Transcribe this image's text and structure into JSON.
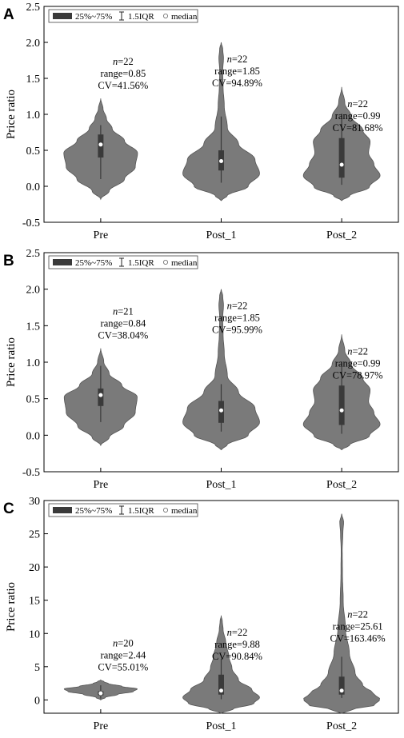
{
  "figure": {
    "legend": {
      "box_label": "25%~75%",
      "whisker_label": "1.5IQR",
      "median_label": "median"
    },
    "colors": {
      "violin": "#7a7a7a",
      "box": "#3a3a3a",
      "median": "#ffffff",
      "axis": "#000000"
    }
  },
  "chart_data": [
    {
      "panel": "A",
      "type": "violin",
      "ylabel": "Price ratio",
      "categories": [
        "Pre",
        "Post_1",
        "Post_2"
      ],
      "ylim": [
        -0.5,
        2.5
      ],
      "yticks": [
        "-0.5",
        "0.0",
        "0.5",
        "1.0",
        "1.5",
        "2.0",
        "2.5"
      ],
      "grid": false,
      "legend_position": "top-left",
      "groups": [
        {
          "category": "Pre",
          "n": "22",
          "range": "range=0.85",
          "cv": "CV=41.56%",
          "q1": 0.4,
          "median": 0.58,
          "q3": 0.72,
          "whisker_low": 0.1,
          "whisker_high": 0.85,
          "kde_min": -0.18,
          "kde_max": 1.22
        },
        {
          "category": "Post_1",
          "n": "22",
          "range": "range=1.85",
          "cv": "CV=94.89%",
          "q1": 0.22,
          "median": 0.35,
          "q3": 0.5,
          "whisker_low": 0.05,
          "whisker_high": 0.97,
          "kde_min": -0.2,
          "kde_max": 2.0
        },
        {
          "category": "Post_2",
          "n": "22",
          "range": "range=0.99",
          "cv": "CV=81.68%",
          "q1": 0.12,
          "median": 0.3,
          "q3": 0.67,
          "whisker_low": 0.02,
          "whisker_high": 1.01,
          "kde_min": -0.2,
          "kde_max": 1.38
        }
      ]
    },
    {
      "panel": "B",
      "type": "violin",
      "ylabel": "Price ratio",
      "categories": [
        "Pre",
        "Post_1",
        "Post_2"
      ],
      "ylim": [
        -0.5,
        2.5
      ],
      "yticks": [
        "-0.5",
        "0.0",
        "0.5",
        "1.0",
        "1.5",
        "2.0",
        "2.5"
      ],
      "grid": false,
      "legend_position": "top-left",
      "groups": [
        {
          "category": "Pre",
          "n": "21",
          "range": "range=0.84",
          "cv": "CV=38.04%",
          "q1": 0.4,
          "median": 0.55,
          "q3": 0.64,
          "whisker_low": 0.18,
          "whisker_high": 0.95,
          "kde_min": -0.14,
          "kde_max": 1.19
        },
        {
          "category": "Post_1",
          "n": "22",
          "range": "range=1.85",
          "cv": "CV=95.99%",
          "q1": 0.17,
          "median": 0.34,
          "q3": 0.47,
          "whisker_low": 0.05,
          "whisker_high": 0.7,
          "kde_min": -0.2,
          "kde_max": 2.0
        },
        {
          "category": "Post_2",
          "n": "22",
          "range": "range=0.99",
          "cv": "CV=78.97%",
          "q1": 0.14,
          "median": 0.34,
          "q3": 0.68,
          "whisker_low": 0.02,
          "whisker_high": 1.01,
          "kde_min": -0.2,
          "kde_max": 1.38
        }
      ]
    },
    {
      "panel": "C",
      "type": "violin",
      "ylabel": "Price ratio",
      "categories": [
        "Pre",
        "Post_1",
        "Post_2"
      ],
      "ylim": [
        -2,
        30
      ],
      "yticks": [
        "0",
        "5",
        "10",
        "15",
        "20",
        "25",
        "30"
      ],
      "grid": false,
      "legend_position": "top-left",
      "groups": [
        {
          "category": "Pre",
          "n": "20",
          "range": "range=2.44",
          "cv": "CV=55.01%",
          "q1": 0.7,
          "median": 1.0,
          "q3": 1.3,
          "whisker_low": 0.2,
          "whisker_high": 2.2,
          "kde_min": 0.0,
          "kde_max": 3.0
        },
        {
          "category": "Post_1",
          "n": "22",
          "range": "range=9.88",
          "cv": "CV=90.84%",
          "q1": 0.8,
          "median": 1.4,
          "q3": 3.8,
          "whisker_low": 0.1,
          "whisker_high": 6.2,
          "kde_min": -2.0,
          "kde_max": 12.7
        },
        {
          "category": "Post_2",
          "n": "22",
          "range": "range=25.61",
          "cv": "CV=163.46%",
          "q1": 0.8,
          "median": 1.4,
          "q3": 3.5,
          "whisker_low": 0.3,
          "whisker_high": 6.5,
          "kde_min": -2.0,
          "kde_max": 28.0
        }
      ]
    }
  ]
}
